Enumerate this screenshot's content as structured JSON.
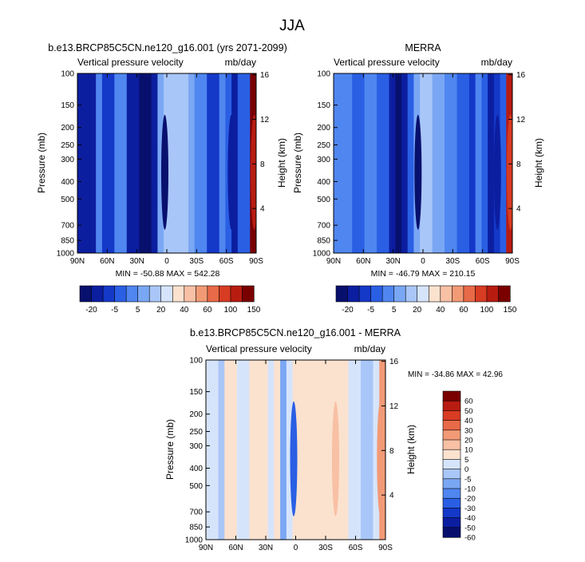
{
  "page": {
    "title": "JJA"
  },
  "colors": {
    "panel_bg": "#4f86e6",
    "top_levels": [
      "#08106e",
      "#0c1ea0",
      "#1438c8",
      "#2a5fe4",
      "#4f86f0",
      "#7aa7f4",
      "#a9c6f8",
      "#d6e4fb",
      "#fbe2cf",
      "#f8c0a4",
      "#f29a76",
      "#e86a48",
      "#d83c22",
      "#b81c10",
      "#7a0000"
    ],
    "diff_levels": [
      "#08106e",
      "#0c1ea0",
      "#1438c8",
      "#2a5fe4",
      "#4f86f0",
      "#7aa7f4",
      "#a9c6f8",
      "#d6e4fb",
      "#fbe2cf",
      "#f8c0a4",
      "#f29a76",
      "#e86a48",
      "#d83c22",
      "#b81c10",
      "#7a0000"
    ]
  },
  "chart_data": [
    {
      "type": "contour",
      "title": "b.e13.BRCP85C5CN.ne120_g16.001 (yrs 2071-2099)",
      "left_label": "Vertical pressure velocity",
      "right_label": "mb/day",
      "ylabel": "Pressure (mb)",
      "y2label": "Height (km)",
      "x_ticks": [
        "90N",
        "60N",
        "30N",
        "0",
        "30S",
        "60S",
        "90S"
      ],
      "y_ticks": [
        "100",
        "150",
        "200",
        "250",
        "300",
        "400",
        "500",
        "700",
        "850",
        "1000"
      ],
      "y2_ticks": [
        "16",
        "12",
        "8",
        "4"
      ],
      "stats": "MIN = -50.88  MAX = 542.28",
      "colorbar_labels": [
        "-20",
        "-5",
        "5",
        "20",
        "40",
        "60",
        "100",
        "150"
      ],
      "bands": [
        1,
        1,
        1,
        4,
        2,
        2,
        4,
        4,
        1,
        1,
        0,
        0,
        1,
        5,
        6,
        6,
        6,
        6,
        5,
        4,
        4,
        2,
        2,
        4,
        3,
        1,
        3,
        3,
        14
      ],
      "highlights": [
        {
          "lat": 2,
          "level": 0
        },
        {
          "lat": -65,
          "level": 1
        },
        {
          "lat": -88,
          "level": 13
        }
      ]
    },
    {
      "type": "contour",
      "title": "MERRA",
      "left_label": "Vertical pressure velocity",
      "right_label": "mb/day",
      "ylabel": "Pressure (mb)",
      "y2label": "Height (km)",
      "x_ticks": [
        "90N",
        "60N",
        "30N",
        "0",
        "30S",
        "60S",
        "90S"
      ],
      "y_ticks": [
        "100",
        "150",
        "200",
        "250",
        "300",
        "400",
        "500",
        "700",
        "850",
        "1000"
      ],
      "y2_ticks": [
        "16",
        "12",
        "8",
        "4"
      ],
      "stats": "MIN = -46.79  MAX = 210.15",
      "colorbar_labels": [
        "-20",
        "-5",
        "5",
        "20",
        "40",
        "60",
        "100",
        "150"
      ],
      "bands": [
        4,
        4,
        4,
        3,
        3,
        4,
        4,
        3,
        3,
        1,
        0,
        1,
        3,
        5,
        6,
        6,
        5,
        5,
        4,
        4,
        3,
        3,
        2,
        4,
        3,
        1,
        2,
        3,
        13
      ],
      "highlights": [
        {
          "lat": 5,
          "level": 0
        },
        {
          "lat": -75,
          "level": 1
        },
        {
          "lat": -88,
          "level": 12
        }
      ]
    },
    {
      "type": "contour",
      "title": "b.e13.BRCP85C5CN.ne120_g16.001 - MERRA",
      "left_label": "Vertical pressure velocity",
      "right_label": "mb/day",
      "ylabel": "Pressure (mb)",
      "y2label": "Height (km)",
      "x_ticks": [
        "90N",
        "60N",
        "30N",
        "0",
        "30S",
        "60S",
        "90S"
      ],
      "y_ticks": [
        "100",
        "150",
        "200",
        "250",
        "300",
        "400",
        "500",
        "700",
        "850",
        "1000"
      ],
      "y2_ticks": [
        "16",
        "12",
        "8",
        "4"
      ],
      "stats": "MIN = -34.86  MAX = 42.96",
      "colorbar_labels": [
        "60",
        "50",
        "40",
        "30",
        "20",
        "10",
        "5",
        "0",
        "-5",
        "-10",
        "-20",
        "-30",
        "-40",
        "-50",
        "-60"
      ],
      "bands": [
        7,
        7,
        6,
        8,
        8,
        7,
        7,
        8,
        8,
        8,
        7,
        8,
        5,
        7,
        8,
        8,
        8,
        8,
        8,
        8,
        8,
        8,
        8,
        7,
        7,
        6,
        6,
        7,
        10
      ],
      "highlights": [
        {
          "lat": 2,
          "level": 3
        },
        {
          "lat": -40,
          "level": 9
        },
        {
          "lat": -85,
          "level": 10
        }
      ]
    }
  ]
}
